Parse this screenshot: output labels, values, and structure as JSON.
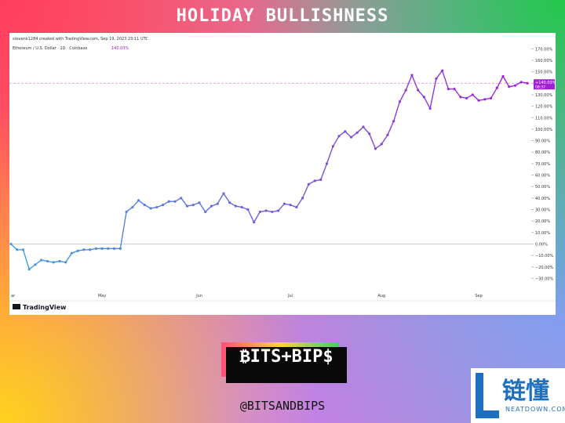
{
  "header": {
    "title": "HOLIDAY BULLISHNESS"
  },
  "chart_data": {
    "type": "line",
    "credit": "stevenk1284 created with TradingView.com, Sep 19, 2023 23:11 UTC",
    "title": "Ethereum / U.S. Dollar · 1D · Coinbase",
    "legend_value_label": "140.03%",
    "last_value_label": "+140.03%",
    "countdown": "08:37",
    "brand": "TradingView",
    "categories": [
      "ar",
      null,
      null,
      null,
      null,
      null,
      null,
      null,
      null,
      null,
      null,
      null,
      null,
      null,
      null,
      "May",
      null,
      null,
      null,
      null,
      null,
      null,
      null,
      null,
      null,
      null,
      null,
      null,
      null,
      null,
      null,
      "Jun",
      null,
      null,
      null,
      null,
      null,
      null,
      null,
      null,
      null,
      null,
      null,
      null,
      null,
      null,
      "Jul",
      null,
      null,
      null,
      null,
      null,
      null,
      null,
      null,
      null,
      null,
      null,
      null,
      null,
      null,
      "Aug",
      null,
      null,
      null,
      null,
      null,
      null,
      null,
      null,
      null,
      null,
      null,
      null,
      null,
      null,
      null,
      "Sep",
      null,
      null,
      null,
      null,
      null,
      null,
      null,
      null
    ],
    "series": [
      {
        "colors": [
          "#3f9fe0",
          "#a21fd6"
        ],
        "values": [
          0,
          -5,
          -5,
          -22,
          -18,
          -14,
          -15,
          -16,
          -15,
          -16,
          -8,
          -6,
          -5,
          -5,
          -4,
          -4,
          -4,
          -4,
          -4,
          28,
          32,
          38,
          34,
          31,
          32,
          34,
          37,
          37,
          40,
          33,
          34,
          36,
          28,
          33,
          35,
          44,
          36,
          33,
          32,
          30,
          19,
          28,
          29,
          28,
          29,
          35,
          34,
          32,
          40,
          52,
          55,
          56,
          70,
          85,
          94,
          98,
          93,
          97,
          102,
          96,
          83,
          87,
          95,
          107,
          124,
          134,
          147,
          134,
          128,
          118,
          144,
          151,
          135,
          135,
          128,
          127,
          130,
          125,
          126,
          127,
          136,
          146,
          137,
          138,
          141,
          140.03
        ]
      }
    ],
    "ylim": [
      -42,
      175
    ],
    "yticks": [
      {
        "value": -30,
        "label": "−30.00%"
      },
      {
        "value": -20,
        "label": "−20.00%"
      },
      {
        "value": -10,
        "label": "−10.00%"
      },
      {
        "value": 0,
        "label": "0.00%"
      },
      {
        "value": 10,
        "label": "10.00%"
      },
      {
        "value": 20,
        "label": "20.00%"
      },
      {
        "value": 30,
        "label": "30.00%"
      },
      {
        "value": 40,
        "label": "40.00%"
      },
      {
        "value": 50,
        "label": "50.00%"
      },
      {
        "value": 60,
        "label": "60.00%"
      },
      {
        "value": 70,
        "label": "70.00%"
      },
      {
        "value": 80,
        "label": "80.00%"
      },
      {
        "value": 90,
        "label": "90.00%"
      },
      {
        "value": 100,
        "label": "100.00%"
      },
      {
        "value": 110,
        "label": "110.00%"
      },
      {
        "value": 120,
        "label": "120.00%"
      },
      {
        "value": 130,
        "label": "130.00%"
      },
      {
        "value": 140,
        "label": "140.00%"
      },
      {
        "value": 150,
        "label": "150.00%"
      },
      {
        "value": 160,
        "label": "160.00%"
      },
      {
        "value": 170,
        "label": "170.00%"
      }
    ]
  },
  "footer": {
    "logo": "₿ITS+BIP$",
    "handle": "@BITSANDBIPS",
    "watermark_cn": "链懂",
    "watermark_en": "NEATDOWN.COM"
  }
}
